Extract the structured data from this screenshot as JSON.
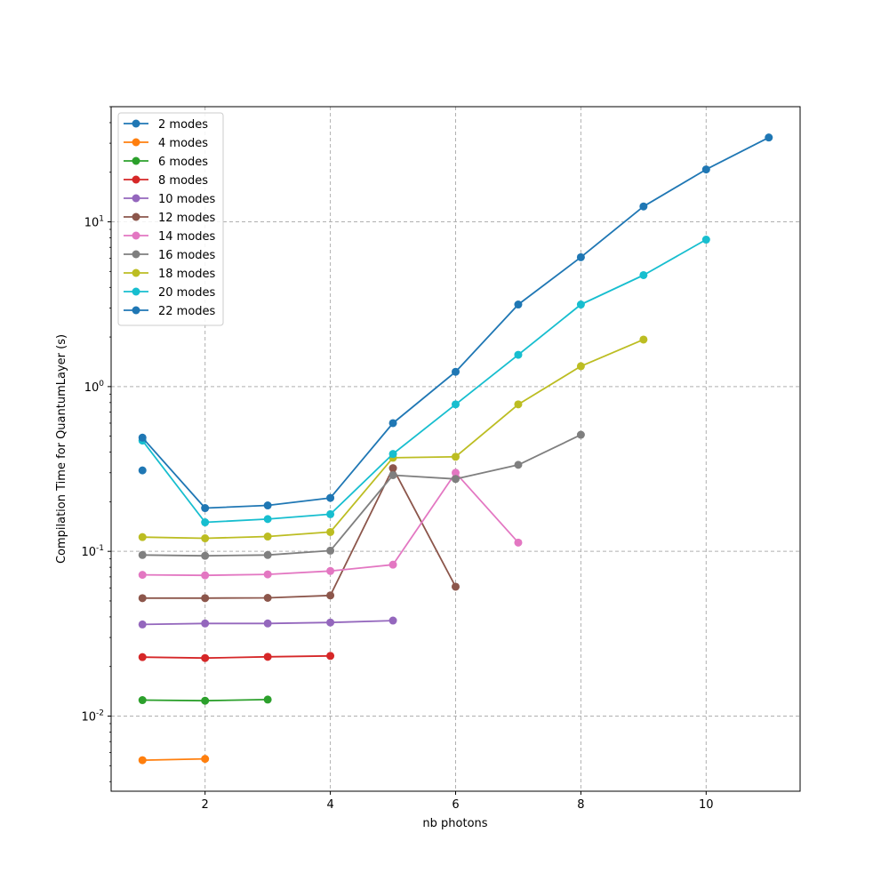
{
  "chart_data": {
    "type": "line",
    "title": "",
    "xlabel": "nb photons",
    "ylabel": "Compilation Time for QuantumLayer (s)",
    "xlim": [
      0.5,
      11.5
    ],
    "ylim": [
      0.0035,
      50
    ],
    "yscale": "log",
    "xticks": [
      2,
      4,
      6,
      8,
      10
    ],
    "xtick_labels": [
      "2",
      "4",
      "6",
      "8",
      "10"
    ],
    "yticks": [
      0.01,
      0.1,
      1,
      10
    ],
    "ytick_base": "10",
    "ytick_exponents": [
      "-2",
      "-1",
      "0",
      "1"
    ],
    "grid": true,
    "legend_position": "upper-left",
    "series": [
      {
        "name": "2 modes",
        "color": "#1f77b4",
        "x": [
          1
        ],
        "y": [
          0.31
        ]
      },
      {
        "name": "4 modes",
        "color": "#ff7f0e",
        "x": [
          1,
          2
        ],
        "y": [
          0.0054,
          0.0055
        ]
      },
      {
        "name": "6 modes",
        "color": "#2ca02c",
        "x": [
          1,
          2,
          3
        ],
        "y": [
          0.0125,
          0.0124,
          0.0126
        ]
      },
      {
        "name": "8 modes",
        "color": "#d62728",
        "x": [
          1,
          2,
          3,
          4
        ],
        "y": [
          0.0228,
          0.0225,
          0.0229,
          0.0232
        ]
      },
      {
        "name": "10 modes",
        "color": "#9467bd",
        "x": [
          1,
          2,
          3,
          4,
          5
        ],
        "y": [
          0.036,
          0.0365,
          0.0365,
          0.037,
          0.038
        ]
      },
      {
        "name": "12 modes",
        "color": "#8c564b",
        "x": [
          1,
          2,
          3,
          4,
          5,
          6
        ],
        "y": [
          0.052,
          0.052,
          0.0522,
          0.054,
          0.32,
          0.061
        ]
      },
      {
        "name": "14 modes",
        "color": "#e377c2",
        "x": [
          1,
          2,
          3,
          4,
          5,
          6,
          7
        ],
        "y": [
          0.072,
          0.0715,
          0.0725,
          0.076,
          0.083,
          0.3,
          0.113
        ]
      },
      {
        "name": "16 modes",
        "color": "#7f7f7f",
        "x": [
          1,
          2,
          3,
          4,
          5,
          6,
          7,
          8
        ],
        "y": [
          0.095,
          0.094,
          0.095,
          0.101,
          0.29,
          0.275,
          0.335,
          0.51
        ]
      },
      {
        "name": "18 modes",
        "color": "#bcbd22",
        "x": [
          1,
          2,
          3,
          4,
          5,
          6,
          7,
          8,
          9
        ],
        "y": [
          0.122,
          0.12,
          0.123,
          0.131,
          0.37,
          0.375,
          0.78,
          1.33,
          1.93
        ]
      },
      {
        "name": "20 modes",
        "color": "#17becf",
        "x": [
          1,
          2,
          3,
          4,
          5,
          6,
          7,
          8,
          9,
          10
        ],
        "y": [
          0.47,
          0.15,
          0.157,
          0.168,
          0.39,
          0.78,
          1.56,
          3.15,
          4.75,
          7.8
        ]
      },
      {
        "name": "22 modes",
        "color": "#1f77b4",
        "x": [
          1,
          2,
          3,
          4,
          5,
          6,
          7,
          8,
          9,
          10,
          11
        ],
        "y": [
          0.49,
          0.183,
          0.19,
          0.211,
          0.6,
          1.23,
          3.15,
          6.1,
          12.4,
          20.8,
          32.5
        ]
      }
    ]
  }
}
